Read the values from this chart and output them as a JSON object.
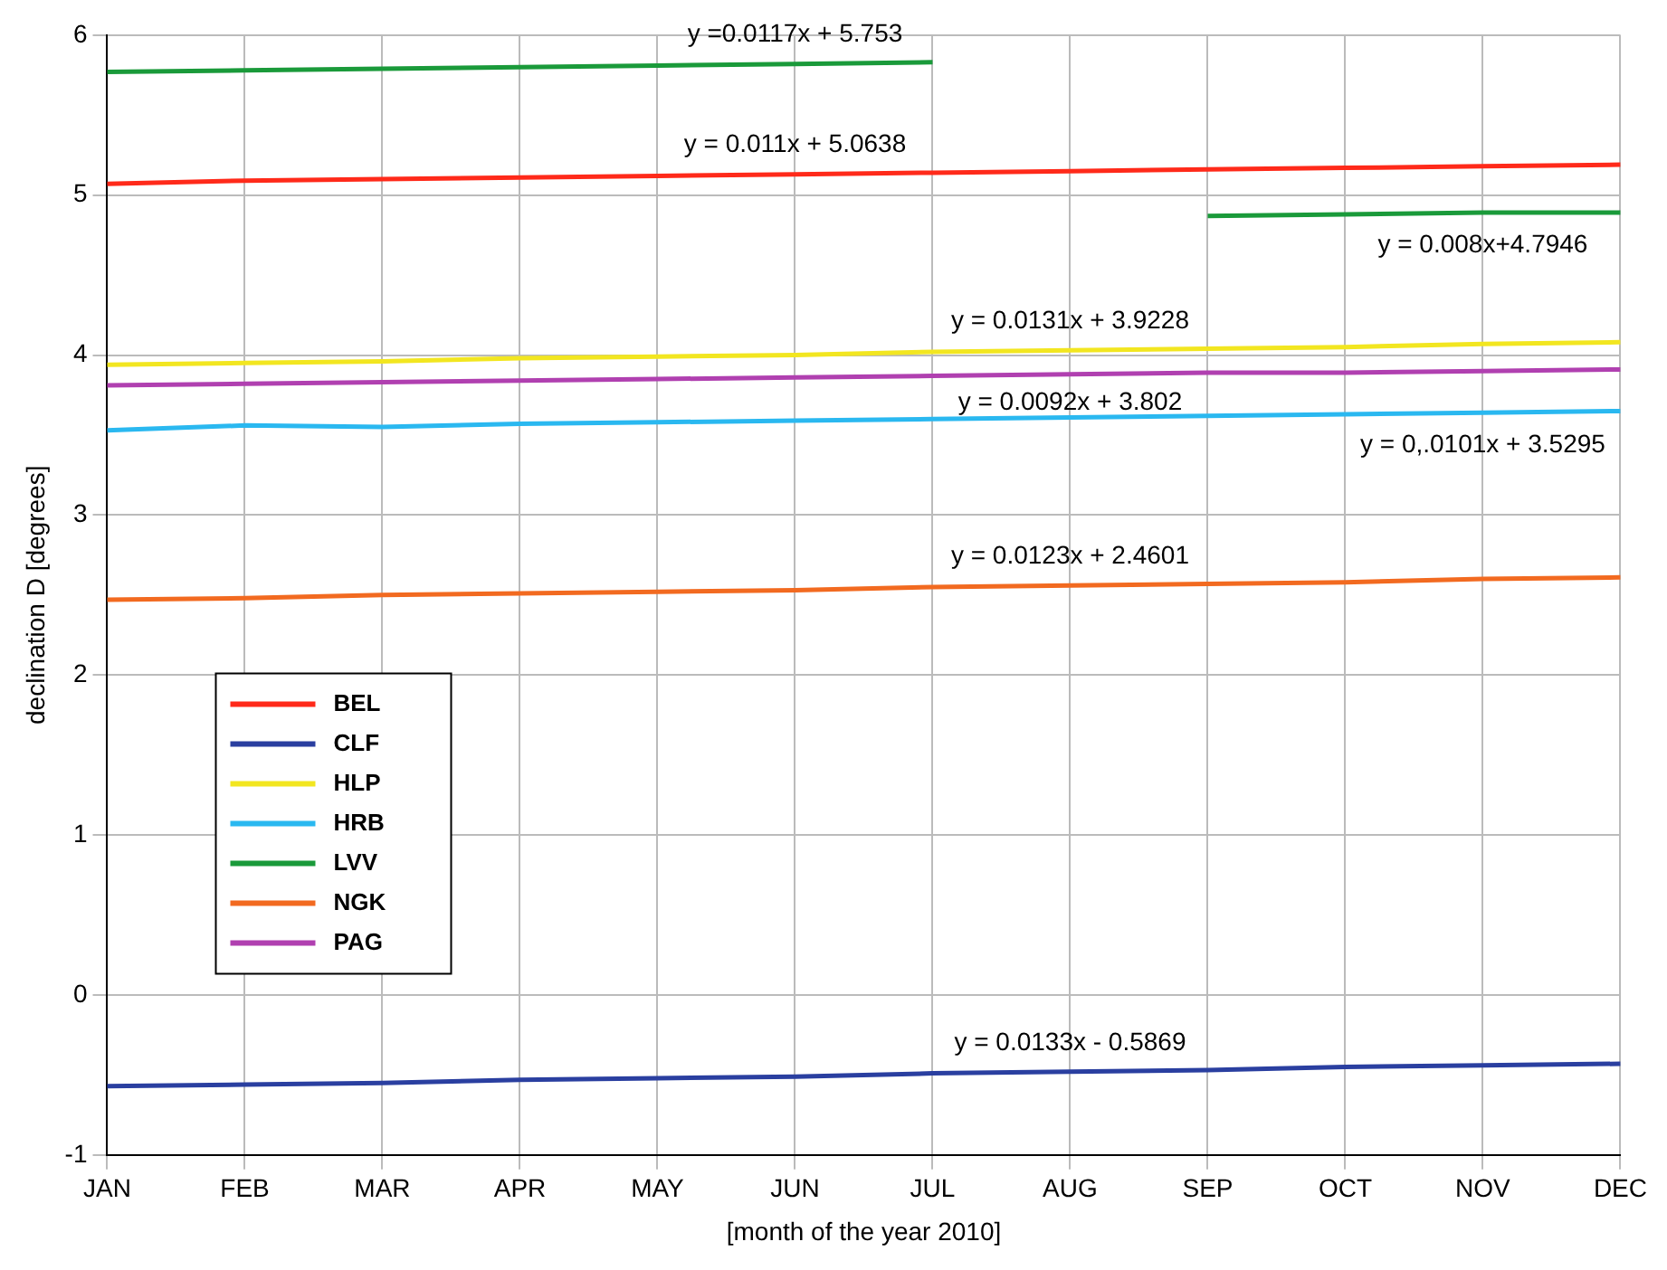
{
  "chart_data": {
    "type": "line",
    "xlabel": "[month of the year 2010]",
    "ylabel": "declination D [degrees]",
    "categories": [
      "JAN",
      "FEB",
      "MAR",
      "APR",
      "MAY",
      "JUN",
      "JUL",
      "AUG",
      "SEP",
      "OCT",
      "NOV",
      "DEC"
    ],
    "series": [
      {
        "name": "BEL",
        "color": "#ff2a1a",
        "values": [
          5.07,
          5.09,
          5.1,
          5.11,
          5.12,
          5.13,
          5.14,
          5.15,
          5.16,
          5.17,
          5.18,
          5.19
        ]
      },
      {
        "name": "CLF",
        "color": "#2a3fa0",
        "values": [
          -0.57,
          -0.56,
          -0.55,
          -0.53,
          -0.52,
          -0.51,
          -0.49,
          -0.48,
          -0.47,
          -0.45,
          -0.44,
          -0.43
        ]
      },
      {
        "name": "HLP",
        "color": "#f2e620",
        "values": [
          3.94,
          3.95,
          3.96,
          3.98,
          3.99,
          4.0,
          4.02,
          4.03,
          4.04,
          4.05,
          4.07,
          4.08
        ]
      },
      {
        "name": "HRB",
        "color": "#2ab8f0",
        "values": [
          3.53,
          3.56,
          3.55,
          3.57,
          3.58,
          3.59,
          3.6,
          3.61,
          3.62,
          3.63,
          3.64,
          3.65
        ]
      },
      {
        "name": "LVV",
        "color": "#1a9a3a",
        "values": [
          5.77,
          5.78,
          5.79,
          5.8,
          5.81,
          5.82,
          5.83,
          null,
          4.87,
          4.88,
          4.89,
          4.89
        ]
      },
      {
        "name": "NGK",
        "color": "#f26a20",
        "values": [
          2.47,
          2.48,
          2.5,
          2.51,
          2.52,
          2.53,
          2.55,
          2.56,
          2.57,
          2.58,
          2.6,
          2.61
        ]
      },
      {
        "name": "PAG",
        "color": "#b040b0",
        "values": [
          3.81,
          3.82,
          3.83,
          3.84,
          3.85,
          3.86,
          3.87,
          3.88,
          3.89,
          3.89,
          3.9,
          3.91
        ]
      }
    ],
    "ylim": [
      -1,
      6
    ],
    "yticks": [
      -1,
      0,
      1,
      2,
      3,
      4,
      5,
      6
    ],
    "grid": true,
    "legend": "left",
    "marker": "none",
    "line_style": "solid",
    "annotations": [
      {
        "text": "y =0.0117x + 5.753",
        "x": "JUN",
        "y": 5.82
      },
      {
        "text": "y = 0.011x + 5.0638",
        "x": "JUN",
        "y": 5.13
      },
      {
        "text": "y = 0.008x+4.7946",
        "x": "NOV",
        "y": 4.89
      },
      {
        "text": "y = 0.0131x + 3.9228",
        "x": "AUG",
        "y": 4.03
      },
      {
        "text": "y = 0.0092x + 3.802",
        "x": "AUG",
        "y": 3.88
      },
      {
        "text": "y = 0,.0101x + 3.5295",
        "x": "NOV",
        "y": 3.64
      },
      {
        "text": "y = 0.0123x + 2.4601",
        "x": "AUG",
        "y": 2.56
      },
      {
        "text": "y = 0.0133x - 0.5869",
        "x": "AUG",
        "y": -0.48
      }
    ]
  }
}
